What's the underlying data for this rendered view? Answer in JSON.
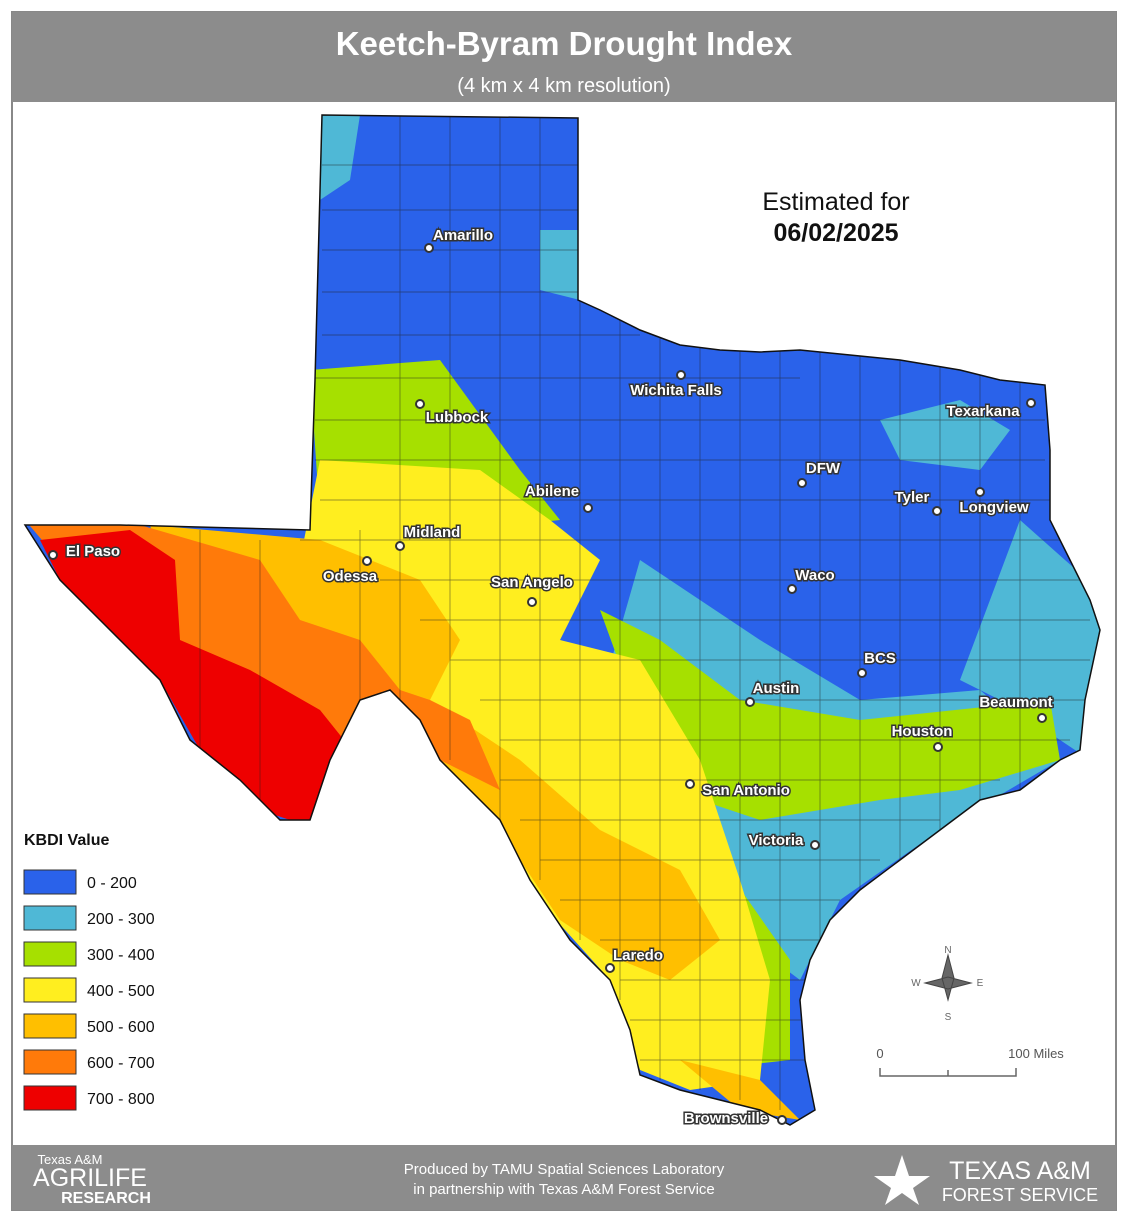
{
  "header": {
    "title": "Keetch-Byram Drought Index",
    "subtitle": "(4 km x 4 km resolution)"
  },
  "estimate": {
    "label": "Estimated for",
    "date": "06/02/2025"
  },
  "cities": [
    "Amarillo",
    "Wichita Falls",
    "Lubbock",
    "Texarkana",
    "DFW",
    "Abilene",
    "Tyler",
    "Longview",
    "Midland",
    "El Paso",
    "Odessa",
    "San Angelo",
    "Waco",
    "BCS",
    "Austin",
    "Beaumont",
    "Houston",
    "San Antonio",
    "Victoria",
    "Laredo",
    "Brownsville"
  ],
  "legend": {
    "title": "KBDI Value",
    "items": [
      {
        "label": "0 - 200",
        "color": "#2a62ea"
      },
      {
        "label": "200 - 300",
        "color": "#4fb8d6"
      },
      {
        "label": "300 - 400",
        "color": "#a6e000"
      },
      {
        "label": "400 - 500",
        "color": "#ffee1f"
      },
      {
        "label": "500 - 600",
        "color": "#ffbf00"
      },
      {
        "label": "600 - 700",
        "color": "#ff7a0a"
      },
      {
        "label": "700 - 800",
        "color": "#ee0000"
      }
    ]
  },
  "scale_bar": {
    "start": "0",
    "end": "100 Miles"
  },
  "compass": {
    "n": "N",
    "e": "E",
    "s": "S",
    "w": "W"
  },
  "footer": {
    "left_logo": [
      "Texas A&M",
      "AgriLife",
      "Research"
    ],
    "credit": [
      "Produced by TAMU Spatial Sciences Laboratory",
      "in partnership with Texas A&M Forest Service"
    ],
    "right_logo": [
      "Texas A&M",
      "Forest Service"
    ]
  }
}
